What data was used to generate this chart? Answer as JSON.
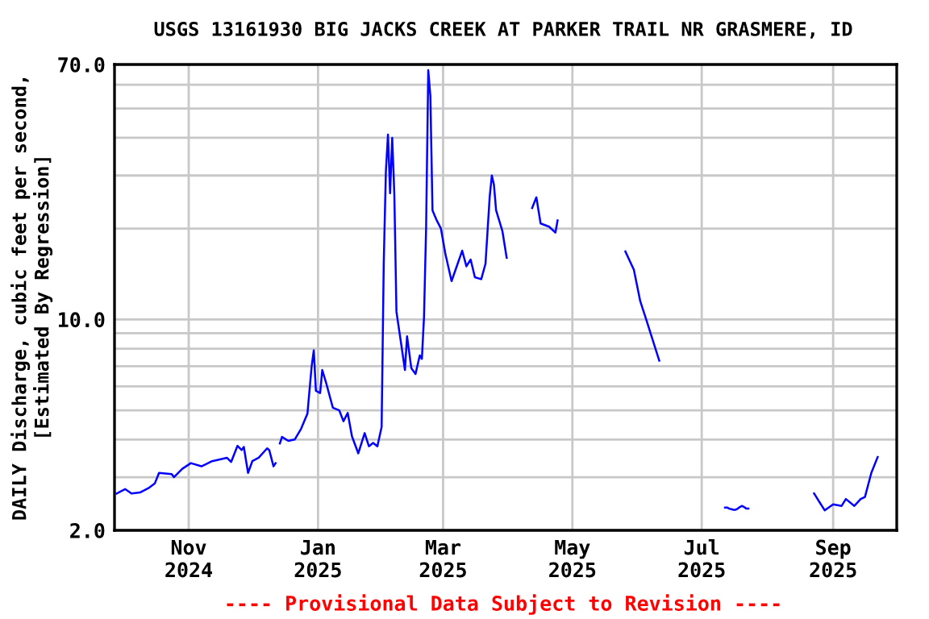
{
  "chart_data": {
    "type": "line",
    "title": "USGS 13161930 BIG JACKS CREEK AT PARKER TRAIL NR GRASMERE, ID",
    "ylabel": "DAILY Discharge, cubic feet per second,\n[Estimated By Regression]",
    "annotations": [
      "---- Provisional Data Subject to Revision ----"
    ],
    "log": "y",
    "grid": true,
    "line_style": "solid",
    "marker": "none",
    "xlim": [
      "2024-09-27",
      "2025-10-01"
    ],
    "xticks": [
      {
        "value": "2024-11-01",
        "label": "Nov\n2024"
      },
      {
        "value": "2025-01-01",
        "label": "Jan\n2025"
      },
      {
        "value": "2025-03-01",
        "label": "Mar\n2025"
      },
      {
        "value": "2025-05-01",
        "label": "May\n2025"
      },
      {
        "value": "2025-07-01",
        "label": "Jul\n2025"
      },
      {
        "value": "2025-09-01",
        "label": "Sep\n2025"
      }
    ],
    "ylim": [
      2,
      70
    ],
    "yticks": [
      {
        "value": 2,
        "label": "2.0"
      },
      {
        "value": 3,
        "label": null
      },
      {
        "value": 4,
        "label": null
      },
      {
        "value": 5,
        "label": null
      },
      {
        "value": 6,
        "label": null
      },
      {
        "value": 7,
        "label": null
      },
      {
        "value": 8,
        "label": null
      },
      {
        "value": 9,
        "label": null
      },
      {
        "value": 10,
        "label": "10.0"
      },
      {
        "value": 20,
        "label": null
      },
      {
        "value": 30,
        "label": null
      },
      {
        "value": 40,
        "label": null
      },
      {
        "value": 50,
        "label": null
      },
      {
        "value": 60,
        "label": null
      },
      {
        "value": 70,
        "label": "70.0"
      }
    ],
    "series": [
      {
        "color": "#0000ff",
        "x": [
          "2024-09-28",
          "2024-10-02",
          "2024-10-05",
          "2024-10-09",
          "2024-10-13",
          "2024-10-16",
          "2024-10-18",
          "2024-10-24",
          "2024-10-25",
          "2024-10-29",
          "2024-11-02",
          "2024-11-07",
          "2024-11-12",
          "2024-11-19",
          "2024-11-21",
          "2024-11-24",
          "2024-11-26",
          "2024-11-27",
          "2024-11-29",
          "2024-12-01",
          "2024-12-04",
          "2024-12-08",
          "2024-12-09",
          "2024-12-11",
          "2024-12-12",
          "2024-12-13",
          "2024-12-14",
          "2024-12-15",
          "2024-12-18",
          "2024-12-21",
          "2024-12-24",
          "2024-12-27",
          "2024-12-29",
          "2024-12-30",
          "2024-12-31",
          "2025-01-02",
          "2025-01-03",
          "2025-01-05",
          "2025-01-08",
          "2025-01-11",
          "2025-01-13",
          "2025-01-15",
          "2025-01-17",
          "2025-01-20",
          "2025-01-23",
          "2025-01-25",
          "2025-01-27",
          "2025-01-29",
          "2025-01-31",
          "2025-02-01",
          "2025-02-02",
          "2025-02-03",
          "2025-02-04",
          "2025-02-05",
          "2025-02-06",
          "2025-02-07",
          "2025-02-09",
          "2025-02-11",
          "2025-02-12",
          "2025-02-14",
          "2025-02-16",
          "2025-02-18",
          "2025-02-19",
          "2025-02-20",
          "2025-02-21",
          "2025-02-22",
          "2025-02-23",
          "2025-02-24",
          "2025-02-26",
          "2025-02-28",
          "2025-03-02",
          "2025-03-05",
          "2025-03-07",
          "2025-03-10",
          "2025-03-12",
          "2025-03-14",
          "2025-03-16",
          "2025-03-19",
          "2025-03-21",
          "2025-03-23",
          "2025-03-24",
          "2025-03-25",
          "2025-03-26",
          "2025-03-29",
          "2025-03-31",
          "2025-04-02",
          "2025-04-12",
          "2025-04-14",
          "2025-04-16",
          "2025-04-20",
          "2025-04-23",
          "2025-04-24",
          "2025-05-10",
          "2025-05-26",
          "2025-05-30",
          "2025-06-02",
          "2025-06-05",
          "2025-06-08",
          "2025-06-11",
          "2025-06-30",
          "2025-07-12",
          "2025-07-13",
          "2025-07-14",
          "2025-07-15",
          "2025-07-16",
          "2025-07-17",
          "2025-07-18",
          "2025-07-19",
          "2025-07-20",
          "2025-07-21",
          "2025-07-22",
          "2025-07-23",
          "2025-08-10",
          "2025-08-23",
          "2025-08-28",
          "2025-09-01",
          "2025-09-05",
          "2025-09-07",
          "2025-09-11",
          "2025-09-14",
          "2025-09-16",
          "2025-09-19",
          "2025-09-22"
        ],
        "values": [
          2.65,
          2.74,
          2.65,
          2.67,
          2.76,
          2.86,
          3.1,
          3.07,
          3.0,
          3.2,
          3.34,
          3.26,
          3.39,
          3.48,
          3.37,
          3.81,
          3.69,
          3.78,
          3.1,
          3.39,
          3.48,
          3.74,
          3.69,
          3.26,
          3.34,
          null,
          3.88,
          4.08,
          3.96,
          4.0,
          4.34,
          4.87,
          7.0,
          7.9,
          5.8,
          5.7,
          6.8,
          6.1,
          5.1,
          5.0,
          4.6,
          4.9,
          4.1,
          3.6,
          4.2,
          3.8,
          3.9,
          3.8,
          4.4,
          15.3,
          30.8,
          41.0,
          26.2,
          40.0,
          26.0,
          10.6,
          8.5,
          6.8,
          8.8,
          6.9,
          6.6,
          7.6,
          7.4,
          10.2,
          20.3,
          67.0,
          55.0,
          23.0,
          21.3,
          20.0,
          16.6,
          13.4,
          14.7,
          16.9,
          15.0,
          15.8,
          13.8,
          13.6,
          15.3,
          25.6,
          30.0,
          27.9,
          23.0,
          19.6,
          16.0,
          null,
          23.4,
          25.4,
          20.8,
          20.3,
          19.4,
          21.3,
          null,
          16.8,
          14.6,
          11.5,
          9.9,
          8.5,
          7.3,
          null,
          2.38,
          2.38,
          2.36,
          2.35,
          2.34,
          2.34,
          2.36,
          2.39,
          2.41,
          2.39,
          2.36,
          2.36,
          null,
          2.65,
          2.33,
          2.44,
          2.41,
          2.54,
          2.41,
          2.54,
          2.58,
          3.1,
          3.5
        ]
      }
    ]
  }
}
